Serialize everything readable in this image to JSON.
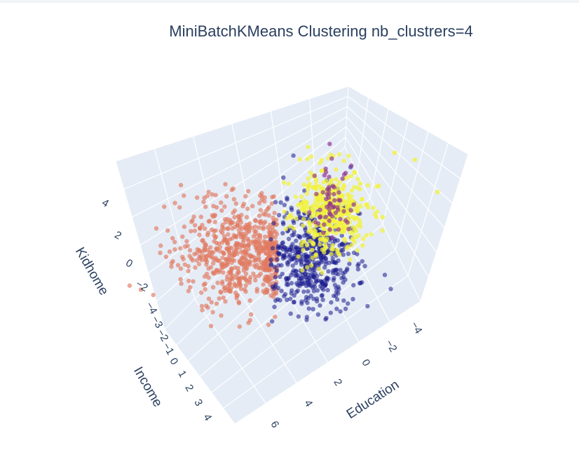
{
  "chart_data": {
    "type": "scatter",
    "dimensions": "3d",
    "title": "MiniBatchKMeans Clustering nb_clustrers=4",
    "axes": {
      "x": {
        "label": "Education",
        "ticks": [
          "−4",
          "−2",
          "0",
          "2",
          "4",
          "6"
        ]
      },
      "y": {
        "label": "Income",
        "ticks": [
          "−4",
          "−3",
          "−2",
          "−1",
          "0",
          "1",
          "2",
          "3",
          "4"
        ]
      },
      "z": {
        "label": "Kidhome",
        "ticks": [
          "−2",
          "0",
          "2",
          "4"
        ]
      }
    },
    "grid": true,
    "legend": "none",
    "colors": {
      "background": "#e5ecf6",
      "grid": "#ffffff",
      "text": "#2a3f5f"
    },
    "series": [
      {
        "color": "#e07a5f",
        "approx_count": 650
      },
      {
        "color": "#1a1a8c",
        "approx_count": 520
      },
      {
        "color": "#f2f23a",
        "approx_count": 420
      },
      {
        "color": "#8e2c8e",
        "approx_count": 60
      }
    ]
  }
}
